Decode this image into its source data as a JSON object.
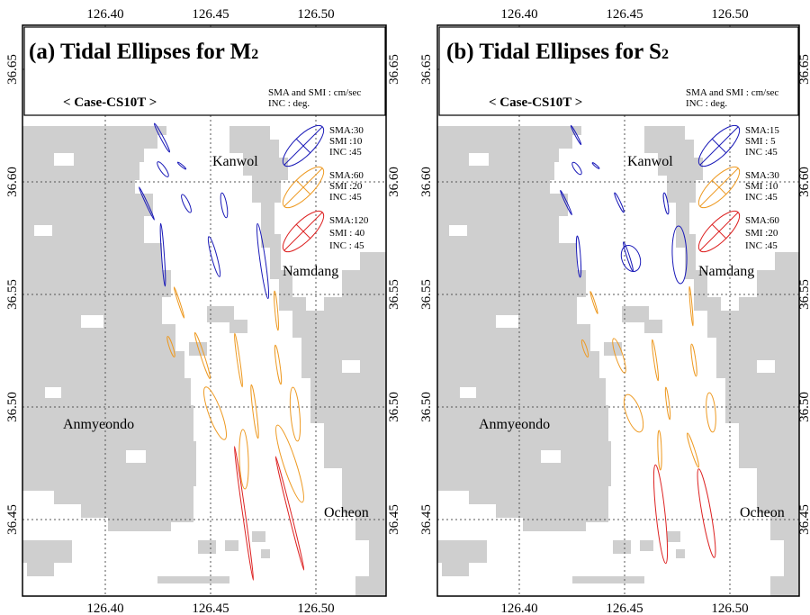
{
  "colors": {
    "land": "#cfcfcf",
    "m2_blue": "#1a1ab8",
    "m2_orange": "#ee9a22",
    "m2_red": "#dd2222"
  },
  "axes": {
    "lon_ticks": [
      "126.40",
      "126.45",
      "126.50"
    ],
    "lat_ticks": [
      "36.65",
      "36.60",
      "36.55",
      "36.50",
      "36.45"
    ]
  },
  "panels": [
    {
      "title_main": "(a) Tidal Ellipses for M",
      "title_sub": "2",
      "case": "< Case-CS10T >",
      "note1": "SMA and SMI  : cm/sec",
      "note2": "INC : deg.",
      "legend": [
        {
          "sma": "SMA:30",
          "smi": "SMI  :10",
          "inc": "INC  :45",
          "color": "#1a1ab8"
        },
        {
          "sma": "SMA:60",
          "smi": "SMI  :20",
          "inc": "INC  :45",
          "color": "#ee9a22"
        },
        {
          "sma": "SMA:120",
          "smi": "SMI  : 40",
          "inc": "INC  : 45",
          "color": "#dd2222"
        }
      ],
      "places": {
        "kanwol": "Kanwol",
        "namdang": "Namdang",
        "anmyeondo": "Anmyeondo",
        "ocheon": "Ocheon"
      }
    },
    {
      "title_main": "(b) Tidal Ellipses for S",
      "title_sub": "2",
      "case": "< Case-CS10T >",
      "note1": "SMA and SMI  : cm/sec",
      "note2": "INC : deg.",
      "legend": [
        {
          "sma": "SMA:15",
          "smi": "SMI  : 5",
          "inc": "INC  :45",
          "color": "#1a1ab8"
        },
        {
          "sma": "SMA:30",
          "smi": "SMI  :10",
          "inc": "INC  :45",
          "color": "#ee9a22"
        },
        {
          "sma": "SMA:60",
          "smi": "SMI  :20",
          "inc": "INC  :45",
          "color": "#dd2222"
        }
      ],
      "places": {
        "kanwol": "Kanwol",
        "namdang": "Namdang",
        "anmyeondo": "Anmyeondo",
        "ocheon": "Ocheon"
      }
    }
  ]
}
